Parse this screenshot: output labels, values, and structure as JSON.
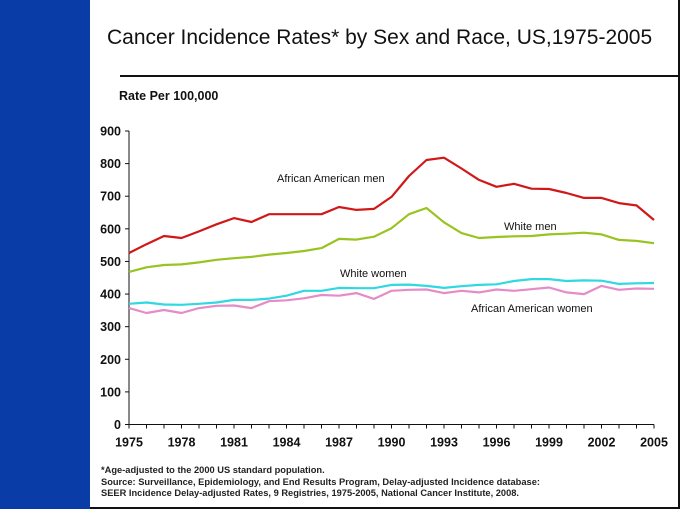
{
  "chart_data": {
    "type": "line",
    "title": "Cancer Incidence Rates* by Sex and Race, US,1975-2005",
    "ylabel": "Rate Per 100,000",
    "xlabel": "",
    "xlim": [
      1975,
      2005
    ],
    "ylim": [
      0,
      900
    ],
    "yticks": [
      0,
      100,
      200,
      300,
      400,
      500,
      600,
      700,
      800,
      900
    ],
    "xticks": [
      1975,
      1978,
      1981,
      1984,
      1987,
      1990,
      1993,
      1996,
      1999,
      2002,
      2005
    ],
    "grid": false,
    "legend": "inline labels",
    "x": [
      1975,
      1976,
      1977,
      1978,
      1979,
      1980,
      1981,
      1982,
      1983,
      1984,
      1985,
      1986,
      1987,
      1988,
      1989,
      1990,
      1991,
      1992,
      1993,
      1994,
      1995,
      1996,
      1997,
      1998,
      1999,
      2000,
      2001,
      2002,
      2003,
      2004,
      2005
    ],
    "series": [
      {
        "name": "African American men",
        "color": "#d01818",
        "values": [
          526,
          553,
          578,
          572,
          592,
          614,
          633,
          621,
          645,
          645,
          645,
          645,
          667,
          658,
          661,
          698,
          762,
          811,
          818,
          785,
          750,
          729,
          738,
          723,
          722,
          710,
          695,
          695,
          679,
          672,
          627
        ]
      },
      {
        "name": "White men",
        "color": "#99c320",
        "values": [
          468,
          482,
          489,
          491,
          497,
          505,
          510,
          514,
          521,
          526,
          532,
          541,
          569,
          567,
          576,
          602,
          645,
          664,
          620,
          587,
          572,
          575,
          577,
          578,
          583,
          585,
          588,
          583,
          566,
          563,
          556
        ]
      },
      {
        "name": "White women",
        "color": "#30d8e0",
        "values": [
          370,
          374,
          368,
          367,
          370,
          374,
          382,
          382,
          386,
          395,
          410,
          410,
          419,
          418,
          418,
          428,
          429,
          425,
          419,
          424,
          428,
          430,
          440,
          446,
          446,
          440,
          442,
          441,
          431,
          433,
          434
        ]
      },
      {
        "name": "African American women",
        "color": "#e58cc8",
        "values": [
          357,
          342,
          351,
          342,
          357,
          364,
          365,
          357,
          378,
          381,
          387,
          397,
          395,
          403,
          385,
          410,
          413,
          414,
          403,
          410,
          405,
          414,
          410,
          415,
          420,
          405,
          400,
          425,
          413,
          417,
          416
        ]
      }
    ]
  },
  "footnote": {
    "line1": "*Age-adjusted to the 2000 US standard population.",
    "line2": "Source:  Surveillance, Epidemiology, and End Results Program, Delay-adjusted Incidence database:",
    "line3": "SEER Incidence Delay-adjusted Rates, 9 Registries, 1975-2005, National Cancer Institute, 2008."
  }
}
